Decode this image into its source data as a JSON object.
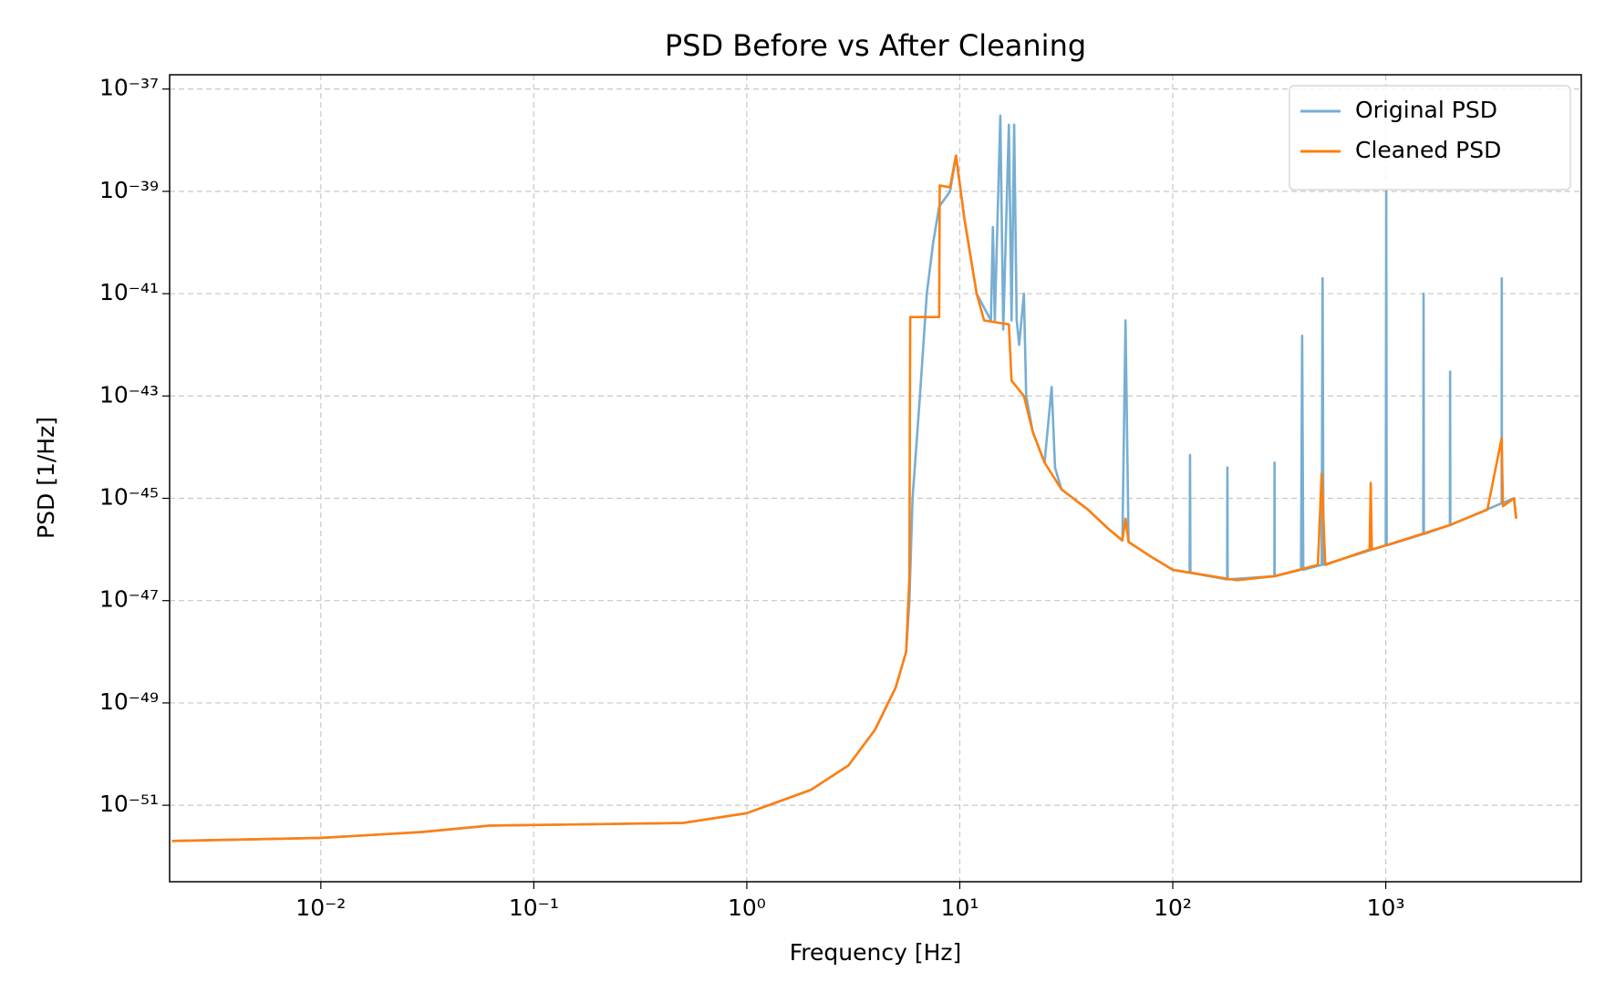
{
  "chart_data": {
    "type": "line",
    "title": "PSD Before vs After Cleaning",
    "xlabel": "Frequency [Hz]",
    "ylabel": "PSD [1/Hz]",
    "xscale": "log",
    "yscale": "log",
    "grid": true,
    "legend": "upper right",
    "xlim": [
      0.00195,
      8280
    ],
    "ylim": [
      3.2e-53,
      1.9e-37
    ],
    "xticks": [
      {
        "value": 0.01,
        "label": "10⁻²"
      },
      {
        "value": 0.1,
        "label": "10⁻¹"
      },
      {
        "value": 1,
        "label": "10⁰"
      },
      {
        "value": 10,
        "label": "10¹"
      },
      {
        "value": 100,
        "label": "10²"
      },
      {
        "value": 1000,
        "label": "10³"
      }
    ],
    "yticks": [
      {
        "value": 1e-37,
        "label": "10⁻³⁷"
      },
      {
        "value": 1e-39,
        "label": "10⁻³⁹"
      },
      {
        "value": 1e-41,
        "label": "10⁻⁴¹"
      },
      {
        "value": 1e-43,
        "label": "10⁻⁴³"
      },
      {
        "value": 1e-45,
        "label": "10⁻⁴⁵"
      },
      {
        "value": 1e-47,
        "label": "10⁻⁴⁷"
      },
      {
        "value": 1e-49,
        "label": "10⁻⁴⁹"
      },
      {
        "value": 1e-51,
        "label": "10⁻⁵¹"
      }
    ],
    "series": [
      {
        "name": "Original PSD",
        "color": "#77aed3",
        "x": [
          0.002,
          0.01,
          0.03,
          0.062,
          0.5,
          1,
          2,
          3,
          4,
          5,
          5.6,
          5.8,
          6,
          6.5,
          7,
          7.5,
          8,
          9,
          9.6,
          10.5,
          12,
          14,
          14.3,
          14.6,
          15.5,
          16,
          17,
          17.5,
          18,
          18.5,
          19,
          20,
          20.5,
          22,
          25,
          27,
          28,
          30,
          40,
          50,
          58,
          60,
          62,
          80,
          100,
          120,
          120.5,
          121,
          180,
          180.5,
          181,
          300,
          300.5,
          301,
          400,
          405,
          410,
          500,
          505,
          510,
          1000,
          1005,
          1010,
          1500,
          1505,
          1510,
          2000,
          2005,
          2010,
          3500,
          3505,
          3510,
          4000,
          4096
        ],
        "values": [
          2e-52,
          2.3e-52,
          3e-52,
          4e-52,
          4.5e-52,
          7e-52,
          2e-51,
          6e-51,
          3e-50,
          2e-49,
          1e-48,
          1e-47,
          1e-45,
          1e-43,
          1e-41,
          1e-40,
          5e-40,
          1e-39,
          5e-39,
          3e-40,
          1e-41,
          3e-42,
          2e-40,
          3e-42,
          3e-38,
          2e-42,
          2e-38,
          3e-42,
          2e-38,
          3e-42,
          1e-42,
          1e-41,
          1e-43,
          2e-44,
          5e-45,
          1.5e-43,
          4e-45,
          1.5e-45,
          6e-46,
          2.5e-46,
          1.5e-46,
          3e-42,
          1.4e-46,
          7e-47,
          4e-47,
          3.5e-47,
          7e-45,
          3.5e-47,
          2.6e-47,
          4e-45,
          2.6e-47,
          3e-47,
          5e-45,
          3e-47,
          4e-47,
          1.5e-42,
          4e-47,
          5e-47,
          2e-41,
          5e-47,
          1.2e-46,
          1e-39,
          1.2e-46,
          2e-46,
          1e-41,
          2e-46,
          3e-46,
          3e-43,
          3e-46,
          8e-46,
          2e-41,
          8e-46,
          1e-45,
          4e-46
        ]
      },
      {
        "name": "Cleaned PSD",
        "color": "#ff7f0e",
        "x": [
          0.002,
          0.01,
          0.03,
          0.062,
          0.5,
          1,
          2,
          3,
          4,
          5,
          5.6,
          5.8,
          5.85,
          8,
          8.05,
          9,
          9.6,
          10.5,
          12,
          13,
          17,
          17.5,
          20,
          22,
          25,
          30,
          40,
          50,
          58,
          60,
          62,
          80,
          100,
          200,
          300,
          480,
          500,
          520,
          840,
          850,
          860,
          1000,
          2000,
          3000,
          3500,
          3550,
          4000,
          4096
        ],
        "values": [
          2e-52,
          2.3e-52,
          3e-52,
          4e-52,
          4.5e-52,
          7e-52,
          2e-51,
          6e-51,
          3e-50,
          2e-49,
          1e-48,
          3e-47,
          3.5e-42,
          3.5e-42,
          1.3e-39,
          1.2e-39,
          5e-39,
          3e-40,
          1e-41,
          3e-42,
          2.5e-42,
          2e-43,
          1e-43,
          2e-44,
          5e-45,
          1.5e-45,
          6e-46,
          2.5e-46,
          1.5e-46,
          4e-46,
          1.4e-46,
          7e-47,
          4e-47,
          2.5e-47,
          3e-47,
          5e-47,
          3e-45,
          5e-47,
          1e-46,
          2e-45,
          1e-46,
          1.2e-46,
          3e-46,
          6e-46,
          1.5e-44,
          7e-46,
          1e-45,
          4e-46
        ]
      }
    ]
  }
}
